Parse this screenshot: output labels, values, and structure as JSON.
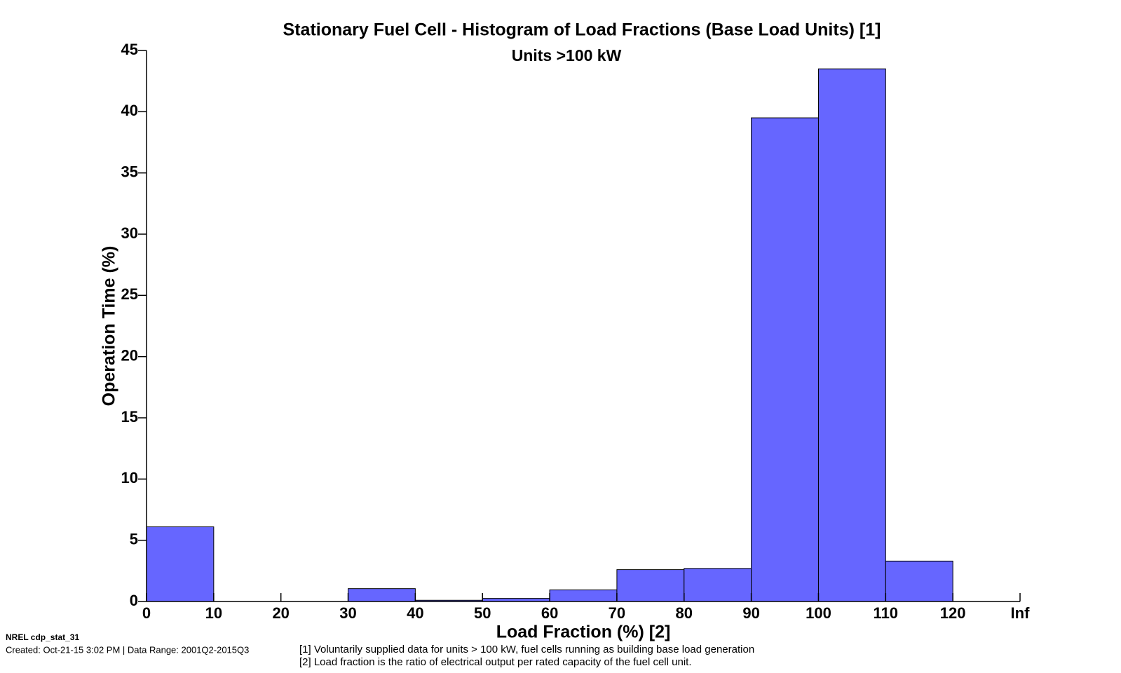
{
  "chart_data": {
    "type": "histogram",
    "title": "Stationary Fuel Cell - Histogram of Load Fractions (Base Load Units) [1]",
    "subtitle": "Units >100 kW",
    "x_label": "Load Fraction (%) [2]",
    "y_label": "Operation Time (%)",
    "bins": [
      0,
      10,
      20,
      30,
      40,
      50,
      60,
      70,
      80,
      90,
      100,
      110,
      120,
      130
    ],
    "values": [
      6.1,
      0,
      0,
      1.05,
      0.1,
      0.25,
      0.95,
      2.6,
      2.7,
      39.5,
      43.5,
      3.3,
      0
    ],
    "color": "#6666ff",
    "xlim": [
      0,
      130
    ],
    "ylim": [
      0,
      45
    ],
    "xticks": [
      0,
      10,
      20,
      30,
      40,
      50,
      60,
      70,
      80,
      90,
      100,
      110,
      120,
      {
        "value": 130,
        "label": "Inf"
      }
    ],
    "yticks": [
      0,
      5,
      10,
      15,
      20,
      25,
      30,
      35,
      40,
      45
    ],
    "footer_id": "NREL cdp_stat_31",
    "footer_created": "Created: Oct-21-15  3:02 PM | Data Range: 2001Q2-2015Q3",
    "notes": [
      "[1] Voluntarily supplied data for units > 100 kW, fuel cells running as building base load generation",
      "[2] Load fraction is the ratio of electrical output per rated capacity of the fuel cell unit."
    ]
  }
}
